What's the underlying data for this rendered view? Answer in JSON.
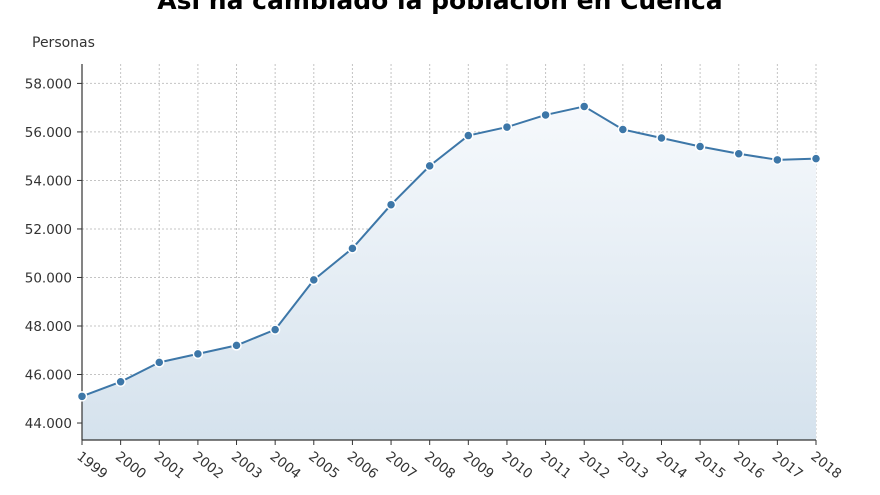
{
  "chart_data": {
    "type": "area",
    "title": "Así ha cambiado la población en Cuenca",
    "ylabel": "Personas",
    "xlabel": "",
    "x": [
      "1999",
      "2000",
      "2001",
      "2002",
      "2003",
      "2004",
      "2005",
      "2006",
      "2007",
      "2008",
      "2009",
      "2010",
      "2011",
      "2012",
      "2013",
      "2014",
      "2015",
      "2016",
      "2017",
      "2018"
    ],
    "series": [
      {
        "values": [
          45100,
          45700,
          46500,
          46850,
          47200,
          47850,
          49900,
          51200,
          53000,
          54600,
          55850,
          56200,
          56700,
          57050,
          56100,
          55750,
          55400,
          55100,
          54850,
          54900
        ]
      }
    ],
    "ylim": [
      43300,
      58800
    ],
    "yticks": [
      44000,
      46000,
      48000,
      50000,
      52000,
      54000,
      56000,
      58000
    ],
    "ytick_labels": [
      "44.000",
      "46.000",
      "48.000",
      "50.000",
      "52.000",
      "54.000",
      "56.000",
      "58.000"
    ],
    "grid": true,
    "line_color": "#3d77a8",
    "fill_top_color": "#f6f9fc",
    "fill_bottom_color": "#d5e2ed",
    "grid_color": "#c4c4c4"
  }
}
